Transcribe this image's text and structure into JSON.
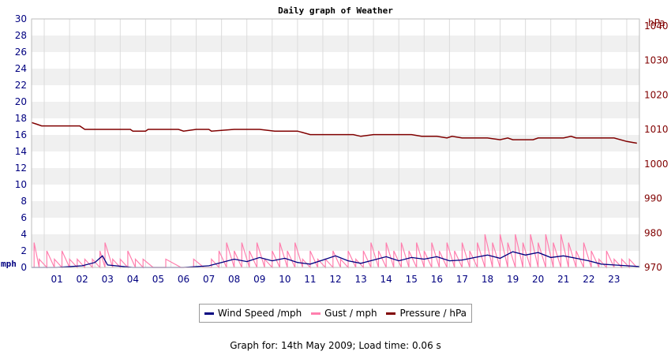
{
  "footer": {
    "prefix": "Graph for: ",
    "date": "14th May 2009",
    "separator": "; Load time: ",
    "load_time": "0.06 s"
  },
  "colors": {
    "wind": "#000080",
    "gust": "#ff7fae",
    "pressure": "#800000",
    "left_axis": "#000080",
    "right_axis": "#800000",
    "band": "#f0f0f0"
  },
  "chart_data": {
    "type": "line",
    "title": "Daily graph of Weather",
    "x_tick_labels": [
      "01",
      "02",
      "03",
      "04",
      "05",
      "06",
      "07",
      "08",
      "09",
      "10",
      "11",
      "12",
      "13",
      "14",
      "15",
      "16",
      "17",
      "18",
      "19",
      "20",
      "21",
      "22",
      "23"
    ],
    "x_range_hours": [
      0,
      24
    ],
    "y_left": {
      "unit_label": "mph",
      "range": [
        0,
        30
      ],
      "ticks": [
        0,
        2,
        4,
        6,
        8,
        10,
        12,
        14,
        16,
        18,
        20,
        22,
        24,
        26,
        28,
        30
      ]
    },
    "y_right": {
      "unit_label": "hPa",
      "range": [
        970,
        1042
      ],
      "ticks": [
        970,
        980,
        990,
        1000,
        1010,
        1020,
        1030,
        1040
      ]
    },
    "grid": true,
    "legend_position": "bottom-center",
    "series": [
      {
        "name": "Wind Speed /mph",
        "axis": "left",
        "x": [
          0,
          1,
          2,
          2.5,
          2.8,
          3,
          4,
          5,
          6,
          7,
          7.5,
          8,
          8.5,
          9,
          9.5,
          10,
          10.5,
          11,
          11.5,
          12,
          12.5,
          13,
          13.5,
          14,
          14.5,
          15,
          15.5,
          16,
          16.5,
          17,
          17.5,
          18,
          18.5,
          19,
          19.5,
          20,
          20.5,
          21,
          21.5,
          22,
          22.5,
          23,
          23.5,
          24
        ],
        "values": [
          0,
          0,
          0.2,
          0.6,
          1.4,
          0.3,
          0,
          0,
          0,
          0.2,
          0.6,
          1.0,
          0.7,
          1.2,
          0.8,
          1.1,
          0.6,
          0.4,
          0.9,
          1.4,
          0.8,
          0.5,
          0.9,
          1.3,
          0.8,
          1.2,
          1.0,
          1.3,
          0.8,
          0.9,
          1.2,
          1.5,
          1.1,
          1.9,
          1.5,
          1.8,
          1.2,
          1.4,
          1.1,
          0.8,
          0.4,
          0.3,
          0.2,
          0.1
        ]
      },
      {
        "name": "Gust / mph",
        "axis": "left",
        "x": [
          0.1,
          0.3,
          0.6,
          0.9,
          1.2,
          1.5,
          1.8,
          2.1,
          2.4,
          2.7,
          2.9,
          3.2,
          3.5,
          3.8,
          4.1,
          4.4,
          4.8,
          5.3,
          5.9,
          6.4,
          6.8,
          7.1,
          7.4,
          7.7,
          8.0,
          8.3,
          8.6,
          8.9,
          9.2,
          9.5,
          9.8,
          10.1,
          10.4,
          10.7,
          11.0,
          11.3,
          11.6,
          11.9,
          12.2,
          12.5,
          12.8,
          13.1,
          13.4,
          13.7,
          14.0,
          14.3,
          14.6,
          14.9,
          15.2,
          15.5,
          15.8,
          16.1,
          16.4,
          16.7,
          17.0,
          17.3,
          17.6,
          17.9,
          18.2,
          18.5,
          18.8,
          19.1,
          19.4,
          19.7,
          20.0,
          20.3,
          20.6,
          20.9,
          21.2,
          21.5,
          21.8,
          22.1,
          22.4,
          22.7,
          23.0,
          23.3,
          23.6,
          23.9
        ],
        "values": [
          3.0,
          1.0,
          2.0,
          1.0,
          2.0,
          1.0,
          1.0,
          1.0,
          1.0,
          2.0,
          3.0,
          1.0,
          1.0,
          2.0,
          1.0,
          1.0,
          0,
          1.0,
          0,
          1.0,
          0,
          1.0,
          2.0,
          3.0,
          2.0,
          3.0,
          2.0,
          3.0,
          1.0,
          2.0,
          3.0,
          2.0,
          3.0,
          1.0,
          2.0,
          1.0,
          1.0,
          2.0,
          1.0,
          2.0,
          1.0,
          2.0,
          3.0,
          2.0,
          3.0,
          2.0,
          3.0,
          2.0,
          3.0,
          2.0,
          3.0,
          2.0,
          3.0,
          2.0,
          3.0,
          2.0,
          3.0,
          4.0,
          3.0,
          4.0,
          3.0,
          4.0,
          3.0,
          4.0,
          3.0,
          4.0,
          3.0,
          4.0,
          3.0,
          2.0,
          3.0,
          2.0,
          1.0,
          2.0,
          1.0,
          1.0,
          1.0,
          0
        ]
      },
      {
        "name": "Pressure / hPa",
        "axis": "right",
        "x": [
          0,
          0.2,
          0.4,
          1.0,
          1.9,
          2.1,
          3.0,
          3.9,
          4.0,
          4.5,
          4.6,
          5.0,
          5.8,
          6.0,
          6.5,
          7.0,
          7.1,
          8.0,
          9.0,
          9.6,
          9.8,
          10.5,
          11.0,
          11.5,
          12.0,
          12.7,
          13.0,
          13.5,
          14.0,
          15.0,
          15.4,
          16.0,
          16.4,
          16.6,
          17.0,
          17.4,
          17.6,
          18.0,
          18.5,
          18.8,
          19.0,
          19.8,
          20.0,
          21.0,
          21.3,
          21.5,
          22.0,
          23.0,
          23.5,
          23.9
        ],
        "values": [
          1012,
          1011.5,
          1011,
          1011,
          1011,
          1010,
          1010,
          1010,
          1009.5,
          1009.5,
          1010,
          1010,
          1010,
          1009.5,
          1010,
          1010,
          1009.5,
          1010,
          1010,
          1009.5,
          1009.5,
          1009.5,
          1008.5,
          1008.5,
          1008.5,
          1008.5,
          1008,
          1008.5,
          1008.5,
          1008.5,
          1008,
          1008,
          1007.5,
          1008,
          1007.5,
          1007.5,
          1007.5,
          1007.5,
          1007,
          1007.5,
          1007,
          1007,
          1007.5,
          1007.5,
          1008,
          1007.5,
          1007.5,
          1007.5,
          1006.5,
          1006
        ]
      }
    ]
  }
}
